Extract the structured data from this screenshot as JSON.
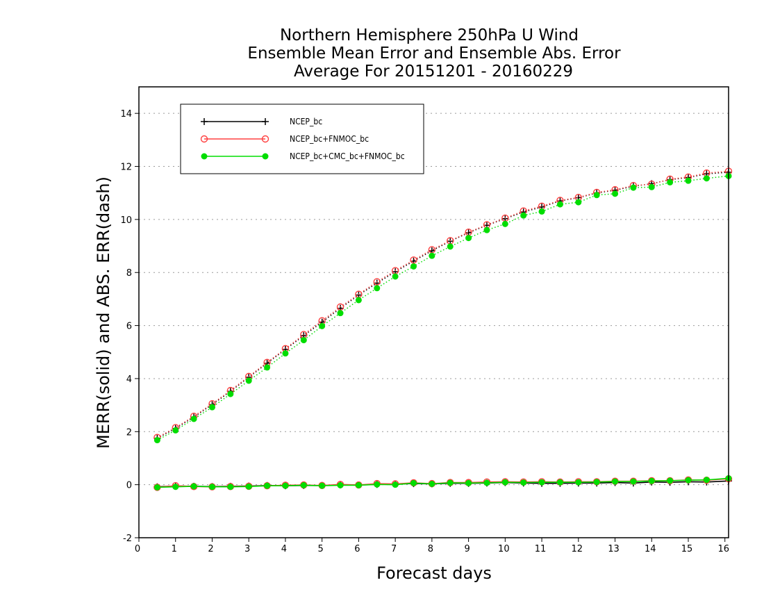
{
  "chart_data": {
    "type": "line",
    "title": [
      "Northern Hemisphere 250hPa U Wind",
      "Ensemble Mean Error and Ensemble Abs. Error",
      "Average For 20151201 - 20160229"
    ],
    "xlabel": "Forecast days",
    "ylabel": "MERR(solid) and ABS. ERR(dash)",
    "xlim": [
      0,
      16.1
    ],
    "ylim": [
      -2,
      15
    ],
    "xticks": [
      "0",
      "1",
      "2",
      "3",
      "4",
      "5",
      "6",
      "7",
      "8",
      "9",
      "10",
      "11",
      "12",
      "13",
      "14",
      "15",
      "16"
    ],
    "yticks": [
      "-2",
      "0",
      "2",
      "4",
      "6",
      "8",
      "10",
      "12",
      "14"
    ],
    "grid": "horizontal dotted",
    "legend_position": "top-left",
    "x": [
      0.5,
      1,
      1.5,
      2,
      2.5,
      3,
      3.5,
      4,
      4.5,
      5,
      5.5,
      6,
      6.5,
      7,
      7.5,
      8,
      8.5,
      9,
      9.5,
      10,
      10.5,
      11,
      11.5,
      12,
      12.5,
      13,
      13.5,
      14,
      14.5,
      15,
      15.5,
      16.1
    ],
    "series": [
      {
        "name": "NCEP_bc",
        "color": "#000000",
        "marker": "plus",
        "abs_error": [
          1.75,
          2.12,
          2.55,
          3.02,
          3.52,
          4.05,
          4.58,
          5.1,
          5.62,
          6.13,
          6.65,
          7.15,
          7.6,
          8.03,
          8.43,
          8.82,
          9.18,
          9.5,
          9.78,
          10.03,
          10.28,
          10.47,
          10.7,
          10.82,
          11.0,
          11.1,
          11.25,
          11.35,
          11.5,
          11.58,
          11.72,
          11.78
        ],
        "mean_error": [
          -0.08,
          -0.05,
          -0.06,
          -0.07,
          -0.06,
          -0.05,
          -0.03,
          -0.04,
          -0.03,
          -0.03,
          -0.01,
          -0.01,
          0.01,
          0.02,
          0.04,
          0.03,
          0.05,
          0.05,
          0.06,
          0.08,
          0.06,
          0.05,
          0.05,
          0.06,
          0.06,
          0.08,
          0.06,
          0.1,
          0.09,
          0.11,
          0.1,
          0.14
        ]
      },
      {
        "name": "NCEP_bc+FNMOC_bc",
        "color": "#ff4040",
        "marker": "open-circle",
        "abs_error": [
          1.78,
          2.15,
          2.58,
          3.05,
          3.55,
          4.08,
          4.61,
          5.13,
          5.66,
          6.18,
          6.7,
          7.18,
          7.65,
          8.07,
          8.47,
          8.86,
          9.2,
          9.52,
          9.8,
          10.05,
          10.32,
          10.5,
          10.72,
          10.83,
          11.02,
          11.12,
          11.28,
          11.33,
          11.52,
          11.6,
          11.75,
          11.82
        ],
        "mean_error": [
          -0.1,
          -0.04,
          -0.07,
          -0.08,
          -0.07,
          -0.06,
          -0.04,
          -0.02,
          -0.01,
          -0.03,
          0.01,
          -0.01,
          0.04,
          0.03,
          0.07,
          0.04,
          0.08,
          0.08,
          0.1,
          0.11,
          0.1,
          0.11,
          0.1,
          0.11,
          0.11,
          0.13,
          0.13,
          0.15,
          0.15,
          0.18,
          0.17,
          0.22
        ]
      },
      {
        "name": "NCEP_bc+CMC_bc+FNMOC_bc",
        "color": "#00dd00",
        "marker": "filled-circle",
        "abs_error": [
          1.68,
          2.05,
          2.48,
          2.92,
          3.42,
          3.92,
          4.42,
          4.95,
          5.45,
          5.98,
          6.47,
          6.96,
          7.41,
          7.85,
          8.23,
          8.63,
          8.98,
          9.3,
          9.6,
          9.83,
          10.15,
          10.3,
          10.57,
          10.65,
          10.92,
          10.97,
          11.2,
          11.22,
          11.4,
          11.46,
          11.55,
          11.64
        ],
        "mean_error": [
          -0.1,
          -0.08,
          -0.06,
          -0.08,
          -0.08,
          -0.07,
          -0.04,
          -0.04,
          -0.02,
          -0.04,
          -0.02,
          -0.02,
          0.01,
          0.0,
          0.06,
          0.03,
          0.07,
          0.06,
          0.07,
          0.09,
          0.08,
          0.09,
          0.09,
          0.09,
          0.1,
          0.12,
          0.12,
          0.14,
          0.15,
          0.17,
          0.18,
          0.24
        ]
      }
    ]
  }
}
